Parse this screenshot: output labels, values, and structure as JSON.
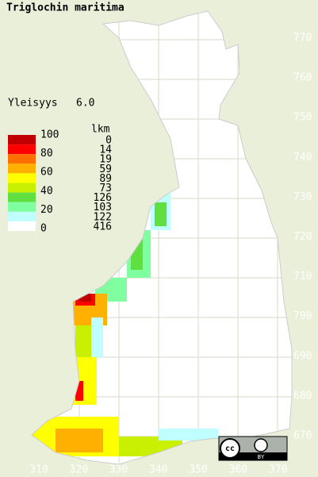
{
  "title": "Triglochin maritima",
  "frequency": {
    "label": "Yleisyys",
    "value": "6.0"
  },
  "legend": {
    "scale_labels": [
      100,
      80,
      60,
      40,
      20,
      0
    ],
    "count_header": "lkm",
    "classes": [
      {
        "color": "#c00000",
        "count": 0
      },
      {
        "color": "#ff0000",
        "count": 14
      },
      {
        "color": "#ff7000",
        "count": 19
      },
      {
        "color": "#ffb000",
        "count": 59
      },
      {
        "color": "#ffff00",
        "count": 89
      },
      {
        "color": "#c8f000",
        "count": 73
      },
      {
        "color": "#60e040",
        "count": 126
      },
      {
        "color": "#80ffa0",
        "count": 103
      },
      {
        "color": "#c0ffff",
        "count": 122
      },
      {
        "color": "#ffffff",
        "count": 416
      }
    ]
  },
  "y_labels": [
    770,
    760,
    750,
    740,
    730,
    720,
    710,
    700,
    690,
    680,
    670
  ],
  "x_labels": [
    310,
    320,
    330,
    340,
    350,
    360,
    370
  ],
  "license": {
    "cc": "cc",
    "by": "BY"
  }
}
